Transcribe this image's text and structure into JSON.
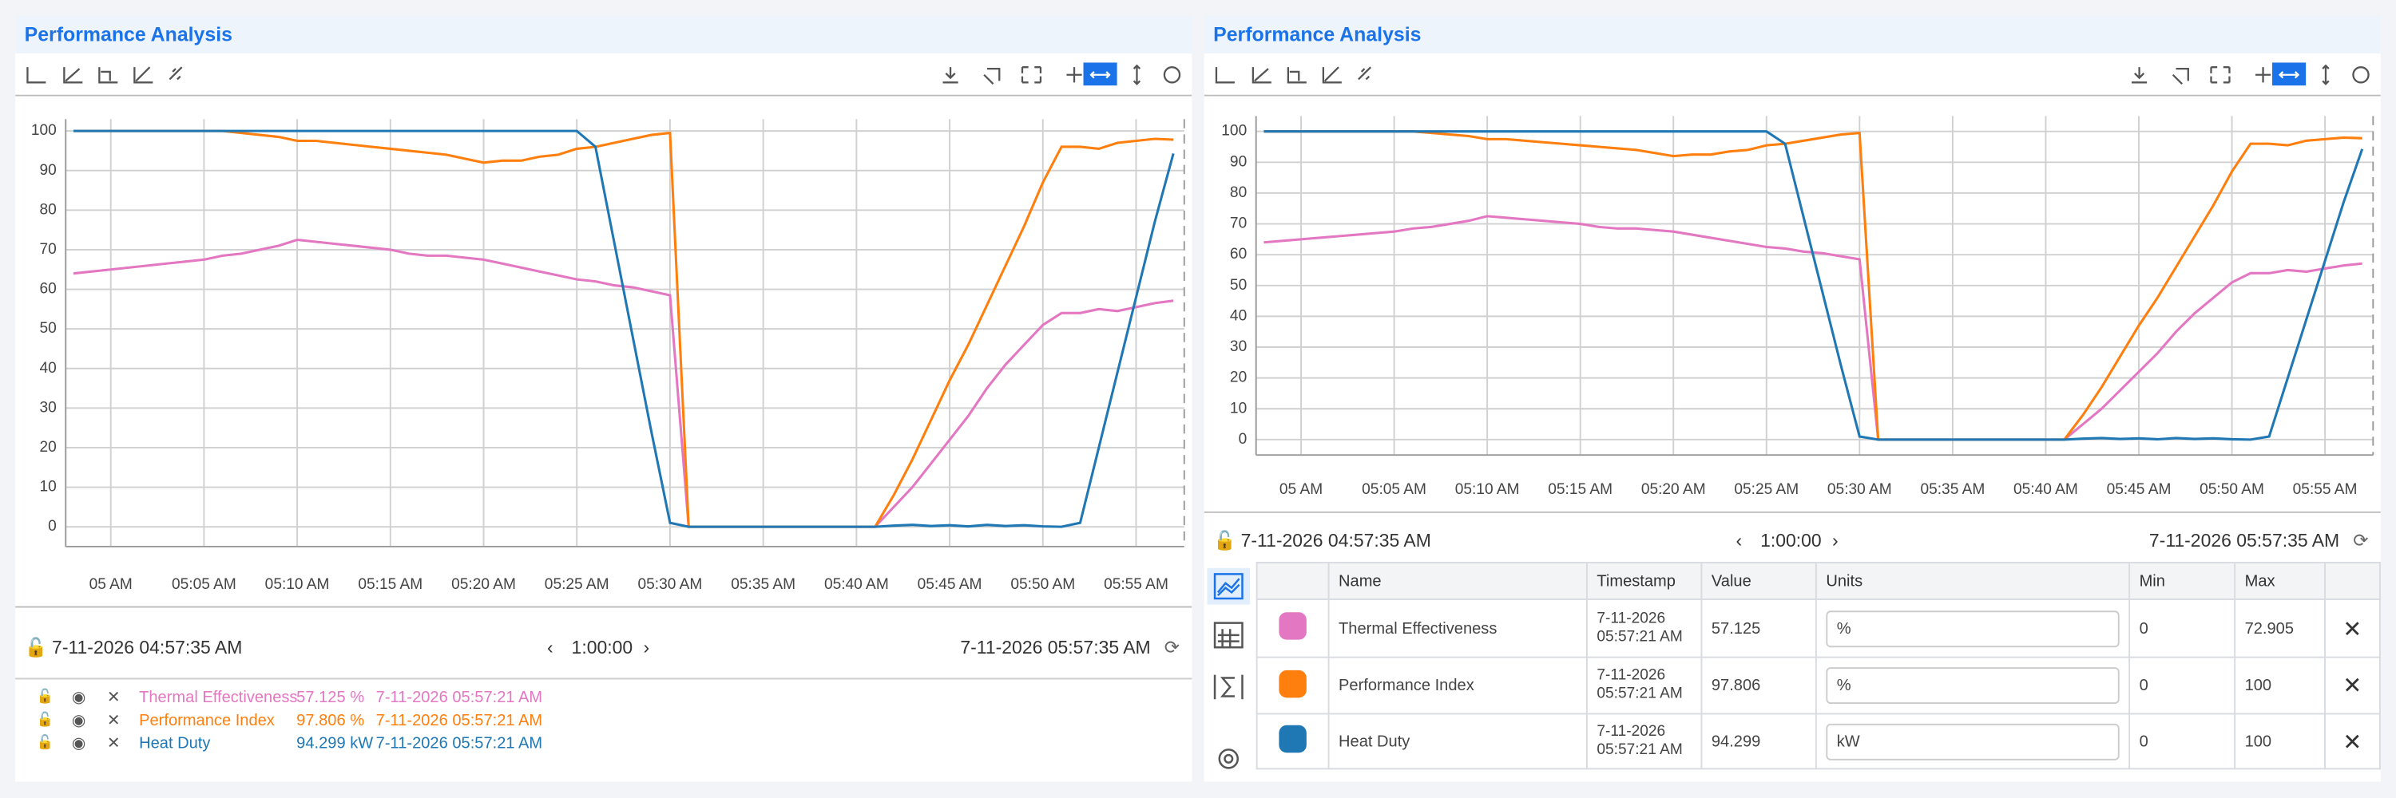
{
  "chart_data": [
    {
      "type": "line",
      "title": "Performance Analysis",
      "x": [
        "04:58",
        "04:59",
        "05:00",
        "05:01",
        "05:02",
        "05:03",
        "05:04",
        "05:05",
        "05:06",
        "05:07",
        "05:08",
        "05:09",
        "05:10",
        "05:11",
        "05:12",
        "05:13",
        "05:14",
        "05:15",
        "05:16",
        "05:17",
        "05:18",
        "05:19",
        "05:20",
        "05:21",
        "05:22",
        "05:23",
        "05:24",
        "05:25",
        "05:26",
        "05:27",
        "05:28",
        "05:29",
        "05:30",
        "05:31",
        "05:32",
        "05:33",
        "05:34",
        "05:35",
        "05:36",
        "05:37",
        "05:38",
        "05:39",
        "05:40",
        "05:41",
        "05:42",
        "05:43",
        "05:44",
        "05:45",
        "05:46",
        "05:47",
        "05:48",
        "05:49",
        "05:50",
        "05:51",
        "05:52",
        "05:53",
        "05:54",
        "05:55",
        "05:56",
        "05:57"
      ],
      "series": [
        {
          "name": "Thermal Effectiveness",
          "color": "#e377c2",
          "values": [
            64,
            64.5,
            65,
            65.5,
            66,
            66.5,
            67,
            67.5,
            68.5,
            69,
            70,
            71,
            72.5,
            72,
            71.5,
            71,
            70.5,
            70,
            69,
            68.5,
            68.5,
            68,
            67.5,
            66.5,
            65.5,
            64.5,
            63.5,
            62.5,
            62,
            61,
            60.5,
            59.5,
            58.5,
            0,
            0,
            0,
            0,
            0,
            0,
            0,
            0,
            0,
            0,
            0,
            5,
            10,
            16,
            22,
            28,
            35,
            41,
            46,
            51,
            54,
            54,
            55,
            54.5,
            55.5,
            56.5,
            57.125
          ]
        },
        {
          "name": "Performance Index",
          "color": "#ff7f0e",
          "values": [
            100,
            100,
            100,
            100,
            100,
            100,
            100,
            100,
            100,
            99.5,
            99,
            98.5,
            97.5,
            97.5,
            97,
            96.5,
            96,
            95.5,
            95,
            94.5,
            94,
            93,
            92,
            92.5,
            92.5,
            93.5,
            94,
            95.5,
            96,
            97,
            98,
            99,
            99.5,
            0,
            0,
            0,
            0,
            0,
            0,
            0,
            0,
            0,
            0,
            0,
            8,
            17,
            27,
            37,
            46,
            56,
            66,
            76,
            87,
            96,
            96,
            95.5,
            97,
            97.5,
            98,
            97.806
          ]
        },
        {
          "name": "Heat Duty",
          "color": "#1f77b4",
          "values": [
            100,
            100,
            100,
            100,
            100,
            100,
            100,
            100,
            100,
            100,
            100,
            100,
            100,
            100,
            100,
            100,
            100,
            100,
            100,
            100,
            100,
            100,
            100,
            100,
            100,
            100,
            100,
            100,
            96,
            72,
            48,
            24,
            1,
            0,
            0,
            0,
            0,
            0,
            0,
            0,
            0,
            0,
            0,
            0,
            0.3,
            0.5,
            0.2,
            0.4,
            0.1,
            0.5,
            0.2,
            0.4,
            0.1,
            0,
            1,
            20,
            39,
            58,
            77,
            94.299
          ]
        }
      ],
      "xlim": [
        "04:57:35",
        "05:57:35"
      ],
      "xticks": [
        {
          "value": "05:00",
          "label": "05 AM"
        },
        {
          "value": "05:05",
          "label": "05:05 AM"
        },
        {
          "value": "05:10",
          "label": "05:10 AM"
        },
        {
          "value": "05:15",
          "label": "05:15 AM"
        },
        {
          "value": "05:20",
          "label": "05:20 AM"
        },
        {
          "value": "05:25",
          "label": "05:25 AM"
        },
        {
          "value": "05:30",
          "label": "05:30 AM"
        },
        {
          "value": "05:35",
          "label": "05:35 AM"
        },
        {
          "value": "05:40",
          "label": "05:40 AM"
        },
        {
          "value": "05:45",
          "label": "05:45 AM"
        },
        {
          "value": "05:50",
          "label": "05:50 AM"
        },
        {
          "value": "05:55",
          "label": "05:55 AM"
        }
      ],
      "ylim": [
        -5,
        103
      ],
      "yticks": [
        0,
        10,
        20,
        30,
        40,
        50,
        60,
        70,
        80,
        90,
        100
      ],
      "grid": true
    },
    {
      "type": "line",
      "title": "Performance Analysis",
      "x": [
        "04:58",
        "04:59",
        "05:00",
        "05:01",
        "05:02",
        "05:03",
        "05:04",
        "05:05",
        "05:06",
        "05:07",
        "05:08",
        "05:09",
        "05:10",
        "05:11",
        "05:12",
        "05:13",
        "05:14",
        "05:15",
        "05:16",
        "05:17",
        "05:18",
        "05:19",
        "05:20",
        "05:21",
        "05:22",
        "05:23",
        "05:24",
        "05:25",
        "05:26",
        "05:27",
        "05:28",
        "05:29",
        "05:30",
        "05:31",
        "05:32",
        "05:33",
        "05:34",
        "05:35",
        "05:36",
        "05:37",
        "05:38",
        "05:39",
        "05:40",
        "05:41",
        "05:42",
        "05:43",
        "05:44",
        "05:45",
        "05:46",
        "05:47",
        "05:48",
        "05:49",
        "05:50",
        "05:51",
        "05:52",
        "05:53",
        "05:54",
        "05:55",
        "05:56",
        "05:57"
      ],
      "series": [
        {
          "name": "Thermal Effectiveness",
          "color": "#e377c2",
          "values": [
            64,
            64.5,
            65,
            65.5,
            66,
            66.5,
            67,
            67.5,
            68.5,
            69,
            70,
            71,
            72.5,
            72,
            71.5,
            71,
            70.5,
            70,
            69,
            68.5,
            68.5,
            68,
            67.5,
            66.5,
            65.5,
            64.5,
            63.5,
            62.5,
            62,
            61,
            60.5,
            59.5,
            58.5,
            0,
            0,
            0,
            0,
            0,
            0,
            0,
            0,
            0,
            0,
            0,
            5,
            10,
            16,
            22,
            28,
            35,
            41,
            46,
            51,
            54,
            54,
            55,
            54.5,
            55.5,
            56.5,
            57.125
          ]
        },
        {
          "name": "Performance Index",
          "color": "#ff7f0e",
          "values": [
            100,
            100,
            100,
            100,
            100,
            100,
            100,
            100,
            100,
            99.5,
            99,
            98.5,
            97.5,
            97.5,
            97,
            96.5,
            96,
            95.5,
            95,
            94.5,
            94,
            93,
            92,
            92.5,
            92.5,
            93.5,
            94,
            95.5,
            96,
            97,
            98,
            99,
            99.5,
            0,
            0,
            0,
            0,
            0,
            0,
            0,
            0,
            0,
            0,
            0,
            8,
            17,
            27,
            37,
            46,
            56,
            66,
            76,
            87,
            96,
            96,
            95.5,
            97,
            97.5,
            98,
            97.806
          ]
        },
        {
          "name": "Heat Duty",
          "color": "#1f77b4",
          "values": [
            100,
            100,
            100,
            100,
            100,
            100,
            100,
            100,
            100,
            100,
            100,
            100,
            100,
            100,
            100,
            100,
            100,
            100,
            100,
            100,
            100,
            100,
            100,
            100,
            100,
            100,
            100,
            100,
            96,
            72,
            48,
            24,
            1,
            0,
            0,
            0,
            0,
            0,
            0,
            0,
            0,
            0,
            0,
            0,
            0.3,
            0.5,
            0.2,
            0.4,
            0.1,
            0.5,
            0.2,
            0.4,
            0.1,
            0,
            1,
            20,
            39,
            58,
            77,
            94.299
          ]
        }
      ],
      "xlim": [
        "04:57:35",
        "05:57:35"
      ],
      "xticks": [
        {
          "value": "05:00",
          "label": "05 AM"
        },
        {
          "value": "05:05",
          "label": "05:05 AM"
        },
        {
          "value": "05:10",
          "label": "05:10 AM"
        },
        {
          "value": "05:15",
          "label": "05:15 AM"
        },
        {
          "value": "05:20",
          "label": "05:20 AM"
        },
        {
          "value": "05:25",
          "label": "05:25 AM"
        },
        {
          "value": "05:30",
          "label": "05:30 AM"
        },
        {
          "value": "05:35",
          "label": "05:35 AM"
        },
        {
          "value": "05:40",
          "label": "05:40 AM"
        },
        {
          "value": "05:45",
          "label": "05:45 AM"
        },
        {
          "value": "05:50",
          "label": "05:50 AM"
        },
        {
          "value": "05:55",
          "label": "05:55 AM"
        }
      ],
      "ylim": [
        -5,
        105
      ],
      "yticks": [
        0,
        10,
        20,
        30,
        40,
        50,
        60,
        70,
        80,
        90,
        100
      ],
      "grid": true
    }
  ],
  "left_panel": {
    "footer": {
      "start": "7-11-2026 04:57:35 AM",
      "duration": "1:00:00",
      "end": "7-11-2026 05:57:35 AM"
    },
    "legend": [
      {
        "value": 57.125,
        "unit": "%",
        "timestamp": "7-11-2026 05:57:21 AM"
      },
      {
        "value": 97.806,
        "unit": "%",
        "timestamp": "7-11-2026 05:57:21 AM"
      },
      {
        "value": 94.299,
        "unit": "kW",
        "timestamp": "7-11-2026 05:57:21 AM"
      }
    ]
  },
  "right_panel": {
    "footer": {
      "start": "7-11-2026 04:57:35 AM",
      "duration": "1:00:00",
      "end": "7-11-2026 05:57:35 AM"
    },
    "table": {
      "headers": [
        "Name",
        "Timestamp",
        "Value",
        "Units",
        "Min",
        "Max"
      ],
      "rows": [
        {
          "timestamp": "7-11-2026 05:57:21 AM",
          "value": 57.125,
          "unit": "%",
          "min": 0,
          "max": 72.905
        },
        {
          "timestamp": "7-11-2026 05:57:21 AM",
          "value": 97.806,
          "unit": "%",
          "min": 0,
          "max": 100
        },
        {
          "timestamp": "7-11-2026 05:57:21 AM",
          "value": 94.299,
          "unit": "kW",
          "min": 0,
          "max": 100
        }
      ]
    }
  }
}
